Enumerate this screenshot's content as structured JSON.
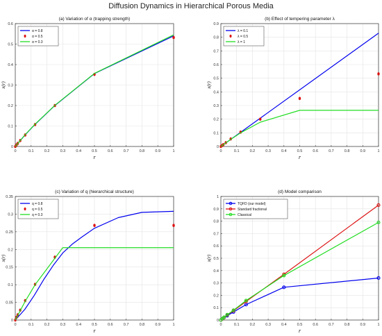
{
  "figure_title": "Diffusion Dynamics in Hierarchical Porous Media",
  "chart_data": [
    {
      "type": "line",
      "title": "(a) Variation of α (trapping strength)",
      "xlabel": "r",
      "ylabel": "x(r)",
      "xlim": [
        0,
        1
      ],
      "ylim": [
        0,
        0.6
      ],
      "xticks": [
        "0",
        "0.1",
        "0.2",
        "0.3",
        "0.4",
        "0.5",
        "0.6",
        "0.7",
        "0.8",
        "0.9",
        "1"
      ],
      "yticks": [
        "0",
        "0.1",
        "0.2",
        "0.3",
        "0.4",
        "0.5",
        "0.6"
      ],
      "grid": true,
      "legend_position": "top-left",
      "series": [
        {
          "name": "α = 0.8",
          "color": "#0000ee",
          "style": "line",
          "x": [
            0,
            0.0625,
            0.125,
            0.25,
            0.5,
            1.0
          ],
          "y": [
            0,
            0.057,
            0.108,
            0.2,
            0.356,
            0.54
          ]
        },
        {
          "name": "α = 0.5",
          "color": "#dd1111",
          "style": "marker",
          "x": [
            0,
            0.0078,
            0.0156,
            0.0312,
            0.0625,
            0.125,
            0.25,
            0.5,
            1.0
          ],
          "y": [
            0,
            0.008,
            0.015,
            0.029,
            0.056,
            0.107,
            0.2,
            0.352,
            0.532
          ]
        },
        {
          "name": "α = 0.3",
          "color": "#22dd22",
          "style": "line",
          "x": [
            0,
            0.0625,
            0.125,
            0.25,
            0.5,
            1.0
          ],
          "y": [
            0,
            0.058,
            0.109,
            0.201,
            0.357,
            0.545
          ]
        }
      ]
    },
    {
      "type": "line",
      "title": "(b) Effect of tempering parameter λ",
      "xlabel": "r",
      "ylabel": "x(r)",
      "xlim": [
        0,
        1
      ],
      "ylim": [
        0,
        0.9
      ],
      "xticks": [
        "0",
        "0.1",
        "0.2",
        "0.3",
        "0.4",
        "0.5",
        "0.6",
        "0.7",
        "0.8",
        "0.9",
        "1"
      ],
      "yticks": [
        "0",
        "0.1",
        "0.2",
        "0.3",
        "0.4",
        "0.5",
        "0.6",
        "0.7",
        "0.8",
        "0.9"
      ],
      "grid": true,
      "legend_position": "top-left",
      "series": [
        {
          "name": "λ = 0.1",
          "color": "#0000ee",
          "style": "line",
          "x": [
            0,
            1.0
          ],
          "y": [
            0,
            0.83
          ]
        },
        {
          "name": "λ = 0.5",
          "color": "#dd1111",
          "style": "marker",
          "x": [
            0,
            0.0078,
            0.0156,
            0.0312,
            0.0625,
            0.125,
            0.25,
            0.5,
            1.0
          ],
          "y": [
            0,
            0.007,
            0.014,
            0.028,
            0.055,
            0.105,
            0.2,
            0.352,
            0.532
          ]
        },
        {
          "name": "λ = 1",
          "color": "#22dd22",
          "style": "line",
          "x": [
            0,
            0.0625,
            0.125,
            0.25,
            0.5,
            1.0
          ],
          "y": [
            0,
            0.052,
            0.1,
            0.178,
            0.265,
            0.265
          ]
        }
      ]
    },
    {
      "type": "line",
      "title": "(c) Variation of q (hierarchical structure)",
      "xlabel": "r",
      "ylabel": "x(r)",
      "xlim": [
        0,
        1
      ],
      "ylim": [
        0,
        0.35
      ],
      "xticks": [
        "0",
        "0.1",
        "0.2",
        "0.3",
        "0.4",
        "0.5",
        "0.6",
        "0.7",
        "0.8",
        "0.9",
        "1"
      ],
      "yticks": [
        "0",
        "0.05",
        "0.1",
        "0.15",
        "0.2",
        "0.25",
        "0.3",
        "0.35"
      ],
      "grid": true,
      "legend_position": "top-left",
      "series": [
        {
          "name": "q = 0.8",
          "color": "#0000ee",
          "style": "line",
          "x": [
            0,
            0.06,
            0.12,
            0.18,
            0.24,
            0.3,
            0.36,
            0.42,
            0.5,
            0.65,
            0.8,
            1.0
          ],
          "y": [
            0,
            0.03,
            0.07,
            0.115,
            0.155,
            0.19,
            0.215,
            0.235,
            0.26,
            0.29,
            0.305,
            0.308
          ]
        },
        {
          "name": "q = 0.5",
          "color": "#dd1111",
          "style": "marker",
          "x": [
            0,
            0.0078,
            0.0156,
            0.0312,
            0.0625,
            0.125,
            0.25,
            0.5,
            1.0
          ],
          "y": [
            0,
            0.008,
            0.015,
            0.028,
            0.055,
            0.101,
            0.178,
            0.268,
            0.268
          ]
        },
        {
          "name": "q = 0.3",
          "color": "#22dd22",
          "style": "line",
          "x": [
            0,
            0.0625,
            0.125,
            0.25,
            0.3,
            1.0
          ],
          "y": [
            0,
            0.053,
            0.1,
            0.175,
            0.205,
            0.205
          ]
        }
      ]
    },
    {
      "type": "line",
      "title": "(d) Model comparison",
      "xlabel": "r",
      "ylabel": "x(r)",
      "xlim": [
        0,
        1
      ],
      "ylim": [
        0,
        1
      ],
      "xticks": [
        "0",
        "0.1",
        "0.2",
        "0.3",
        "0.4",
        "0.5",
        "0.6",
        "0.7",
        "0.8",
        "0.9",
        "1"
      ],
      "yticks": [
        "0",
        "0.1",
        "0.2",
        "0.3",
        "0.4",
        "0.5",
        "0.6",
        "0.7",
        "0.8",
        "0.9",
        "1"
      ],
      "grid": true,
      "legend_position": "top-left",
      "series": [
        {
          "name": "TQFD (our model)",
          "color": "#0000ee",
          "style": "line-marker",
          "x": [
            0,
            0.01,
            0.02,
            0.04,
            0.08,
            0.16,
            0.4,
            1.0
          ],
          "y": [
            0,
            0.01,
            0.02,
            0.035,
            0.065,
            0.125,
            0.265,
            0.34
          ]
        },
        {
          "name": "Standard fractional",
          "color": "#dd1111",
          "style": "line-marker",
          "x": [
            0,
            0.01,
            0.02,
            0.04,
            0.08,
            0.16,
            0.4,
            1.0
          ],
          "y": [
            0,
            0.01,
            0.02,
            0.04,
            0.075,
            0.15,
            0.37,
            0.93
          ]
        },
        {
          "name": "Classical",
          "color": "#22dd22",
          "style": "line-marker",
          "x": [
            0,
            0.01,
            0.02,
            0.04,
            0.08,
            0.16,
            0.4,
            1.0
          ],
          "y": [
            0,
            0.012,
            0.022,
            0.043,
            0.079,
            0.158,
            0.36,
            0.79
          ]
        }
      ]
    }
  ]
}
